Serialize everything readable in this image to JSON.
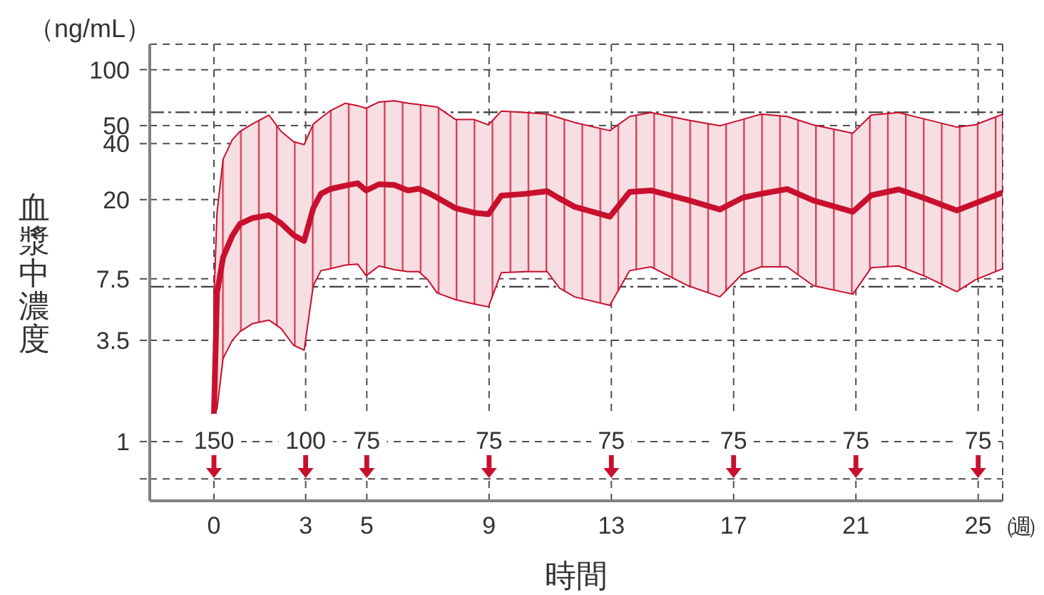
{
  "chart_data": {
    "type": "line",
    "xlabel": "時間",
    "ylabel": "血漿中濃度",
    "annotations": [
      "（ng/mL）",
      "（週）",
      "150",
      "100",
      "75",
      "75",
      "75",
      "75",
      "75",
      "75"
    ],
    "x": [
      0,
      0.1,
      0.3,
      0.6,
      0.85,
      1.25,
      1.8,
      2.2,
      2.6,
      2.95,
      3.25,
      3.5,
      3.8,
      4.3,
      4.7,
      4.98,
      5.4,
      5.9,
      6.35,
      6.7,
      7.0,
      7.3,
      7.9,
      8.5,
      8.98,
      9.4,
      10.2,
      10.9,
      11.3,
      11.8,
      12.95,
      13.6,
      14.3,
      15.5,
      16.55,
      17.3,
      17.9,
      18.75,
      19.6,
      20.9,
      21.5,
      22.4,
      23.3,
      24.3,
      24.9,
      25.8
    ],
    "series": [
      {
        "color": "#c8102e",
        "values": [
          1.4,
          6.3,
          9.8,
          12.8,
          14.8,
          15.9,
          16.5,
          14.9,
          12.9,
          12.0,
          18,
          21.5,
          22.8,
          23.8,
          24.5,
          22.4,
          24.2,
          24.0,
          22.4,
          22.9,
          21.8,
          20.5,
          18.0,
          17.0,
          16.7,
          21,
          21.5,
          22.2,
          20.3,
          18.3,
          16.2,
          22,
          22.4,
          19.9,
          17.7,
          20.5,
          21.5,
          22.8,
          19.8,
          17.2,
          21.1,
          22.7,
          20.2,
          17.5,
          19.1,
          21.8
        ],
        "lower": [
          1.4,
          1.5,
          2.8,
          3.5,
          3.9,
          4.3,
          4.5,
          4.05,
          3.3,
          3.1,
          6.9,
          8.3,
          8.5,
          8.9,
          9.0,
          7.8,
          8.8,
          8.4,
          8.2,
          8.2,
          7.4,
          6.3,
          5.8,
          5.5,
          5.3,
          8.1,
          8.2,
          8.2,
          6.7,
          6.0,
          5.4,
          8.3,
          8.7,
          6.9,
          6.0,
          8.0,
          8.7,
          8.7,
          6.9,
          6.2,
          8.6,
          8.8,
          7.7,
          6.4,
          7.4,
          8.5
        ],
        "upper": [
          5.8,
          17,
          33,
          42,
          46.5,
          51,
          57,
          46.5,
          41,
          39.5,
          51,
          55,
          60,
          66,
          64,
          62,
          67,
          68,
          66,
          65,
          64,
          63,
          54,
          54,
          50.5,
          59.8,
          58.8,
          57.6,
          55,
          52,
          47,
          56,
          58.8,
          53.6,
          49.9,
          54,
          57.6,
          56,
          50.5,
          45.5,
          57,
          58.8,
          54,
          49.1,
          50.5,
          57.6
        ]
      }
    ],
    "xlim": [
      -2.1,
      25.8
    ],
    "xticks": [
      0,
      3,
      5,
      9,
      13,
      17,
      21,
      25
    ],
    "ylim": [
      0.48,
      137
    ],
    "yticks": [
      {
        "value": 0.63,
        "label": null
      },
      1,
      3.5,
      7.5,
      20,
      40,
      50,
      100
    ],
    "log": true,
    "grid": true,
    "marker": "none",
    "ref_lines": [
      {
        "axis": "y",
        "value": 59,
        "line_style": "dashdot"
      },
      {
        "axis": "y",
        "value": 6.8,
        "line_style": "dashdot"
      }
    ]
  }
}
